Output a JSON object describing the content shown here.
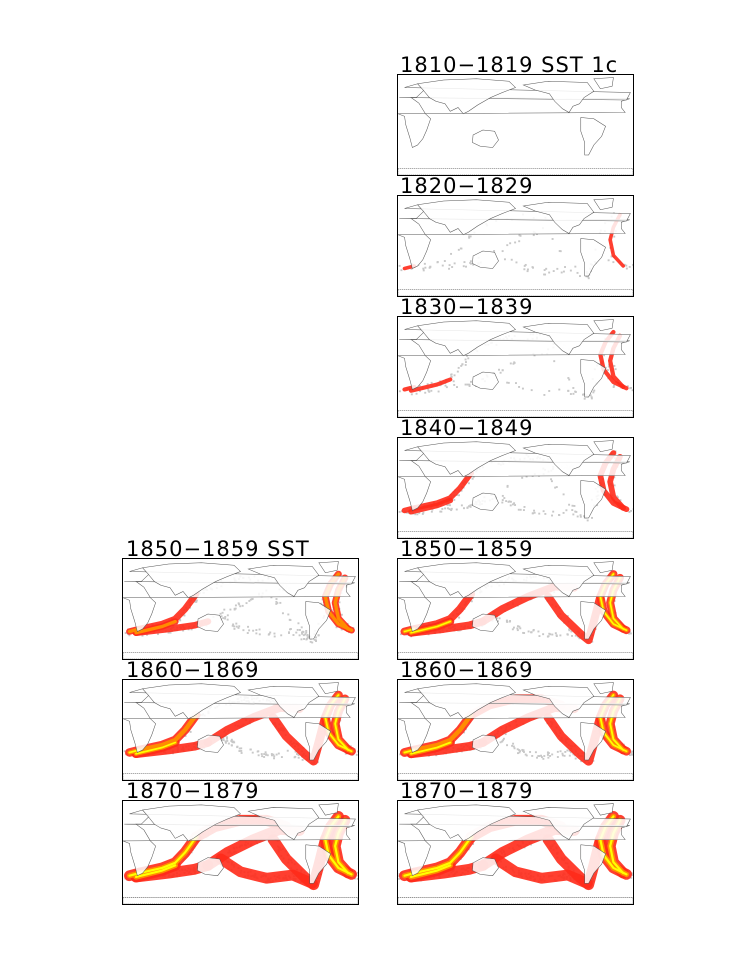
{
  "colors": {
    "low_coverage": "#c8c8c8",
    "medium_coverage": "#ff2a1a",
    "high_coverage": "#ff8c00",
    "very_high_coverage": "#ffff00",
    "coastline": "#555555"
  },
  "left_column": [
    {
      "id": "l1850",
      "title": "1850−1859 SST",
      "level": 2
    },
    {
      "id": "l1860",
      "title": "1860−1869",
      "level": 3
    },
    {
      "id": "l1870",
      "title": "1870−1879",
      "level": 4
    }
  ],
  "right_column": [
    {
      "id": "r1810",
      "title": "1810−1819 SST 1c",
      "level": 0
    },
    {
      "id": "r1820",
      "title": "1820−1829",
      "level": 0.5
    },
    {
      "id": "r1830",
      "title": "1830−1839",
      "level": 0.8
    },
    {
      "id": "r1840",
      "title": "1840−1849",
      "level": 1.5
    },
    {
      "id": "r1850",
      "title": "1850−1859",
      "level": 2.6
    },
    {
      "id": "r1860",
      "title": "1860−1869",
      "level": 3.1
    },
    {
      "id": "r1870",
      "title": "1870−1879",
      "level": 4
    }
  ]
}
